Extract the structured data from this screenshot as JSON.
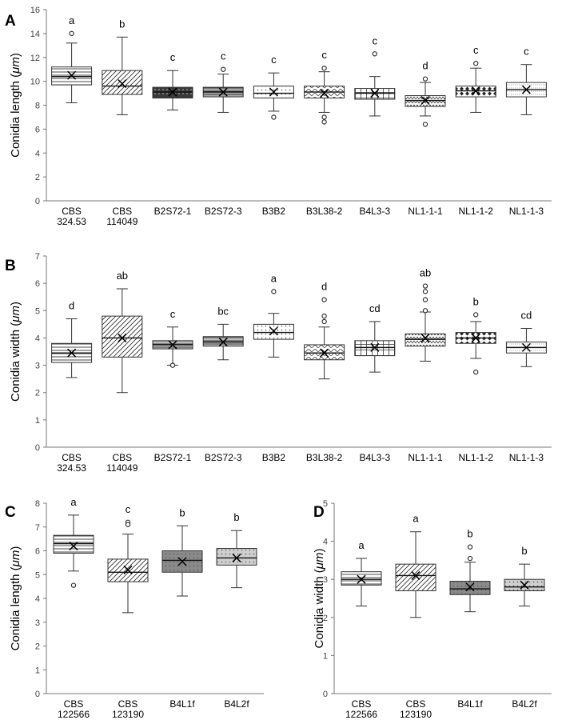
{
  "chart_data": [
    {
      "type": "boxplot",
      "panel_label": "A",
      "ylabel_prefix": "Conidia length (",
      "ylabel_unit": "μm",
      "ylabel_suffix": ")",
      "ylim": [
        0,
        16
      ],
      "yticks": [
        0,
        2,
        4,
        6,
        8,
        10,
        12,
        14,
        16
      ],
      "categories": [
        [
          "CBS",
          "324.53"
        ],
        [
          "CBS",
          "114049"
        ],
        [
          "B2S72-1"
        ],
        [
          "B2S72-3"
        ],
        [
          "B3B2"
        ],
        [
          "B3L38-2"
        ],
        [
          "B4L3-3"
        ],
        [
          "NL1-1-1"
        ],
        [
          "NL1-1-2"
        ],
        [
          "NL1-1-3"
        ]
      ],
      "boxes": [
        {
          "min": 8.2,
          "q1": 9.7,
          "median": 10.4,
          "q3": 11.2,
          "max": 13.2,
          "mean": 10.5,
          "outliers": [
            14.0
          ],
          "letter": "a",
          "pattern": "hlines",
          "fill": "#ffffff"
        },
        {
          "min": 7.2,
          "q1": 8.9,
          "median": 9.6,
          "q3": 10.9,
          "max": 13.7,
          "mean": 9.8,
          "outliers": [],
          "letter": "b",
          "pattern": "diag",
          "fill": "#ffffff"
        },
        {
          "min": 7.6,
          "q1": 8.6,
          "median": 9.1,
          "q3": 9.5,
          "max": 10.9,
          "mean": 9.1,
          "outliers": [],
          "letter": "c",
          "pattern": "dots",
          "fill": "#3a3a3a"
        },
        {
          "min": 7.4,
          "q1": 8.7,
          "median": 9.1,
          "q3": 9.5,
          "max": 10.6,
          "mean": 9.1,
          "outliers": [
            11.0
          ],
          "letter": "c",
          "pattern": "hlines",
          "fill": "#a8a8a8"
        },
        {
          "min": 7.5,
          "q1": 8.6,
          "median": 9.0,
          "q3": 9.6,
          "max": 10.7,
          "mean": 9.1,
          "outliers": [
            7.0
          ],
          "letter": "c",
          "pattern": "dots",
          "fill": "#ffffff"
        },
        {
          "min": 7.4,
          "q1": 8.6,
          "median": 9.1,
          "q3": 9.6,
          "max": 10.8,
          "mean": 9.0,
          "outliers": [
            11.1,
            7.0,
            6.6
          ],
          "letter": "c",
          "pattern": "waves",
          "fill": "#ffffff"
        },
        {
          "min": 7.1,
          "q1": 8.5,
          "median": 9.0,
          "q3": 9.4,
          "max": 10.4,
          "mean": 9.0,
          "outliers": [
            12.3
          ],
          "letter": "c",
          "pattern": "grid",
          "fill": "#ffffff"
        },
        {
          "min": 7.1,
          "q1": 7.9,
          "median": 8.4,
          "q3": 8.8,
          "max": 9.9,
          "mean": 8.4,
          "outliers": [
            10.2,
            6.4
          ],
          "letter": "d",
          "pattern": "zigzag",
          "fill": "#ffffff"
        },
        {
          "min": 7.4,
          "q1": 8.7,
          "median": 9.2,
          "q3": 9.6,
          "max": 11.1,
          "mean": 9.2,
          "outliers": [
            11.5
          ],
          "letter": "c",
          "pattern": "diamonds",
          "fill": "#ffffff"
        },
        {
          "min": 7.2,
          "q1": 8.7,
          "median": 9.3,
          "q3": 9.9,
          "max": 11.4,
          "mean": 9.3,
          "outliers": [],
          "letter": "c",
          "pattern": "fine",
          "fill": "#ffffff"
        }
      ]
    },
    {
      "type": "boxplot",
      "panel_label": "B",
      "ylabel_prefix": "Conidia width (",
      "ylabel_unit": "μm",
      "ylabel_suffix": ")",
      "ylim": [
        0,
        7
      ],
      "yticks": [
        0,
        1,
        2,
        3,
        4,
        5,
        6,
        7
      ],
      "categories": [
        [
          "CBS",
          "324.53"
        ],
        [
          "CBS",
          "114049"
        ],
        [
          "B2S72-1"
        ],
        [
          "B2S72-3"
        ],
        [
          "B3B2"
        ],
        [
          "B3L38-2"
        ],
        [
          "B4L3-3"
        ],
        [
          "NL1-1-1"
        ],
        [
          "NL1-1-2"
        ],
        [
          "NL1-1-3"
        ]
      ],
      "boxes": [
        {
          "min": 2.55,
          "q1": 3.1,
          "median": 3.45,
          "q3": 3.8,
          "max": 4.7,
          "mean": 3.45,
          "outliers": [],
          "letter": "d",
          "pattern": "hlines",
          "fill": "#ffffff"
        },
        {
          "min": 2.0,
          "q1": 3.3,
          "median": 4.0,
          "q3": 4.8,
          "max": 5.8,
          "mean": 4.0,
          "outliers": [],
          "letter": "ab",
          "pattern": "diag",
          "fill": "#ffffff"
        },
        {
          "min": 3.0,
          "q1": 3.6,
          "median": 3.75,
          "q3": 3.9,
          "max": 4.4,
          "mean": 3.75,
          "outliers": [
            3.0
          ],
          "letter": "c",
          "pattern": "hlines",
          "fill": "#bdbdbd"
        },
        {
          "min": 3.2,
          "q1": 3.7,
          "median": 3.85,
          "q3": 4.05,
          "max": 4.5,
          "mean": 3.85,
          "outliers": [],
          "letter": "bc",
          "pattern": "hlines",
          "fill": "#bdbdbd"
        },
        {
          "min": 3.3,
          "q1": 3.95,
          "median": 4.2,
          "q3": 4.5,
          "max": 4.9,
          "mean": 4.25,
          "outliers": [
            5.7
          ],
          "letter": "a",
          "pattern": "dots",
          "fill": "#ffffff"
        },
        {
          "min": 2.5,
          "q1": 3.2,
          "median": 3.45,
          "q3": 3.75,
          "max": 4.4,
          "mean": 3.45,
          "outliers": [
            5.4,
            4.8,
            4.6
          ],
          "letter": "d",
          "pattern": "waves",
          "fill": "#ffffff"
        },
        {
          "min": 2.75,
          "q1": 3.35,
          "median": 3.65,
          "q3": 3.9,
          "max": 4.6,
          "mean": 3.65,
          "outliers": [],
          "letter": "cd",
          "pattern": "grid",
          "fill": "#ffffff"
        },
        {
          "min": 3.15,
          "q1": 3.7,
          "median": 3.95,
          "q3": 4.15,
          "max": 4.95,
          "mean": 4.0,
          "outliers": [
            5.9,
            5.7,
            5.4,
            5.0
          ],
          "letter": "ab",
          "pattern": "zigzag",
          "fill": "#ffffff"
        },
        {
          "min": 3.25,
          "q1": 3.8,
          "median": 4.0,
          "q3": 4.2,
          "max": 4.6,
          "mean": 4.0,
          "outliers": [
            4.85,
            2.75
          ],
          "letter": "b",
          "pattern": "diamonds",
          "fill": "#ffffff"
        },
        {
          "min": 2.95,
          "q1": 3.45,
          "median": 3.65,
          "q3": 3.85,
          "max": 4.35,
          "mean": 3.65,
          "outliers": [],
          "letter": "cd",
          "pattern": "fine",
          "fill": "#ffffff"
        }
      ]
    },
    {
      "type": "boxplot",
      "panel_label": "C",
      "ylabel_prefix": "Conidia length (",
      "ylabel_unit": "μm",
      "ylabel_suffix": ")",
      "ylim": [
        0,
        8
      ],
      "yticks": [
        0,
        1,
        2,
        3,
        4,
        5,
        6,
        7,
        8
      ],
      "categories": [
        [
          "CBS",
          "122566"
        ],
        [
          "CBS",
          "123190"
        ],
        [
          "B4L1f"
        ],
        [
          "B4L2f"
        ]
      ],
      "boxes": [
        {
          "min": 5.15,
          "q1": 5.9,
          "median": 6.3,
          "q3": 6.65,
          "max": 7.5,
          "mean": 6.2,
          "outliers": [
            4.55
          ],
          "letter": "a",
          "pattern": "hlines",
          "fill": "#ffffff"
        },
        {
          "min": 3.4,
          "q1": 4.7,
          "median": 5.1,
          "q3": 5.65,
          "max": 6.7,
          "mean": 5.2,
          "outliers": [
            7.2,
            7.1
          ],
          "letter": "c",
          "pattern": "diag",
          "fill": "#ffffff"
        },
        {
          "min": 4.1,
          "q1": 5.1,
          "median": 5.6,
          "q3": 6.0,
          "max": 7.05,
          "mean": 5.55,
          "outliers": [],
          "letter": "b",
          "pattern": "dots",
          "fill": "#8a8a8a"
        },
        {
          "min": 4.45,
          "q1": 5.4,
          "median": 5.7,
          "q3": 6.1,
          "max": 6.85,
          "mean": 5.7,
          "outliers": [],
          "letter": "b",
          "pattern": "dots",
          "fill": "#cfcfcf"
        }
      ]
    },
    {
      "type": "boxplot",
      "panel_label": "D",
      "ylabel_prefix": "Conidia width (",
      "ylabel_unit": "μm",
      "ylabel_suffix": ")",
      "ylim": [
        0,
        5
      ],
      "yticks": [
        0,
        1,
        2,
        3,
        4,
        5
      ],
      "categories": [
        [
          "CBS",
          "122566"
        ],
        [
          "CBS",
          "123190"
        ],
        [
          "B4L1f"
        ],
        [
          "B4L2f"
        ]
      ],
      "boxes": [
        {
          "min": 2.3,
          "q1": 2.85,
          "median": 3.0,
          "q3": 3.2,
          "max": 3.55,
          "mean": 3.0,
          "outliers": [],
          "letter": "a",
          "pattern": "hlines",
          "fill": "#ffffff"
        },
        {
          "min": 2.0,
          "q1": 2.7,
          "median": 3.1,
          "q3": 3.4,
          "max": 4.25,
          "mean": 3.1,
          "outliers": [],
          "letter": "a",
          "pattern": "diag",
          "fill": "#ffffff"
        },
        {
          "min": 2.15,
          "q1": 2.6,
          "median": 2.75,
          "q3": 2.95,
          "max": 3.45,
          "mean": 2.8,
          "outliers": [
            3.85,
            3.55
          ],
          "letter": "b",
          "pattern": "dots",
          "fill": "#8a8a8a"
        },
        {
          "min": 2.3,
          "q1": 2.7,
          "median": 2.8,
          "q3": 3.0,
          "max": 3.4,
          "mean": 2.85,
          "outliers": [],
          "letter": "b",
          "pattern": "dots",
          "fill": "#cfcfcf"
        }
      ]
    }
  ]
}
